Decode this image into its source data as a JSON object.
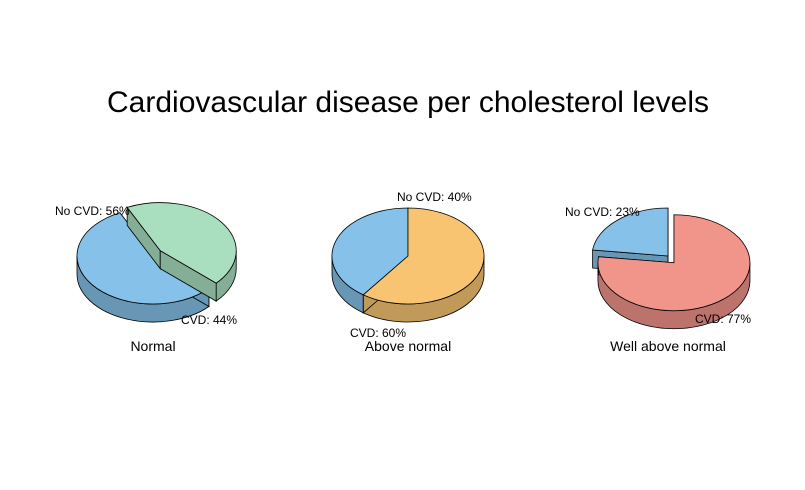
{
  "chart_data": {
    "type": "pie",
    "title": "Cardiovascular disease per cholesterol levels",
    "style": "3d-exploded",
    "charts": [
      {
        "category": "Normal",
        "slices": [
          {
            "label": "No CVD",
            "value": 56,
            "text": "No CVD: 56%",
            "color": "#85C1E9"
          },
          {
            "label": "CVD",
            "value": 44,
            "text": "CVD: 44%",
            "color": "#A9DFBF"
          }
        ]
      },
      {
        "category": "Above normal",
        "slices": [
          {
            "label": "No CVD",
            "value": 40,
            "text": "No CVD: 40%",
            "color": "#85C1E9"
          },
          {
            "label": "CVD",
            "value": 60,
            "text": "CVD: 60%",
            "color": "#F8C471"
          }
        ]
      },
      {
        "category": "Well above normal",
        "slices": [
          {
            "label": "No CVD",
            "value": 23,
            "text": "No CVD: 23%",
            "color": "#85C1E9"
          },
          {
            "label": "CVD",
            "value": 77,
            "text": "CVD: 77%",
            "color": "#F1948A"
          }
        ]
      }
    ]
  }
}
